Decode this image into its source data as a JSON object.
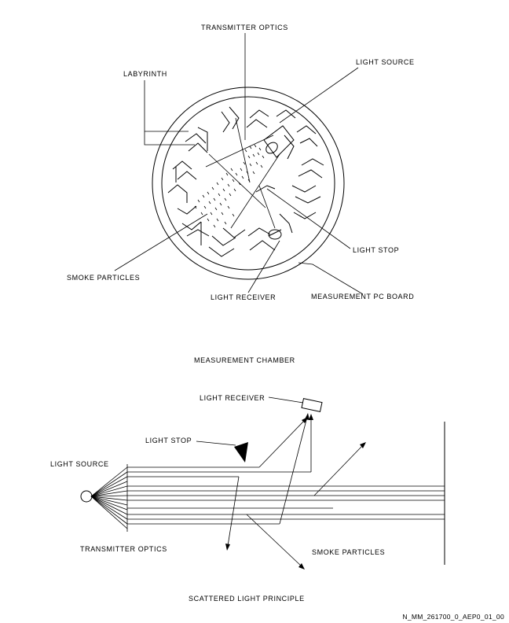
{
  "chamber": {
    "labels": {
      "transmitter_optics": "TRANSMITTER OPTICS",
      "light_source": "LIGHT SOURCE",
      "labyrinth": "LABYRINTH",
      "light_stop": "LIGHT STOP",
      "smoke_particles": "SMOKE PARTICLES",
      "light_receiver": "LIGHT RECEIVER",
      "measurement_pc_board": "MEASUREMENT PC BOARD"
    },
    "caption": "MEASUREMENT CHAMBER"
  },
  "principle": {
    "labels": {
      "light_receiver": "LIGHT RECEIVER",
      "light_stop": "LIGHT STOP",
      "light_source": "LIGHT SOURCE",
      "transmitter_optics": "TRANSMITTER OPTICS",
      "smoke_particles": "SMOKE PARTICLES"
    },
    "caption": "SCATTERED LIGHT PRINCIPLE"
  },
  "reference_id": "N_MM_261700_0_AEP0_01_00"
}
